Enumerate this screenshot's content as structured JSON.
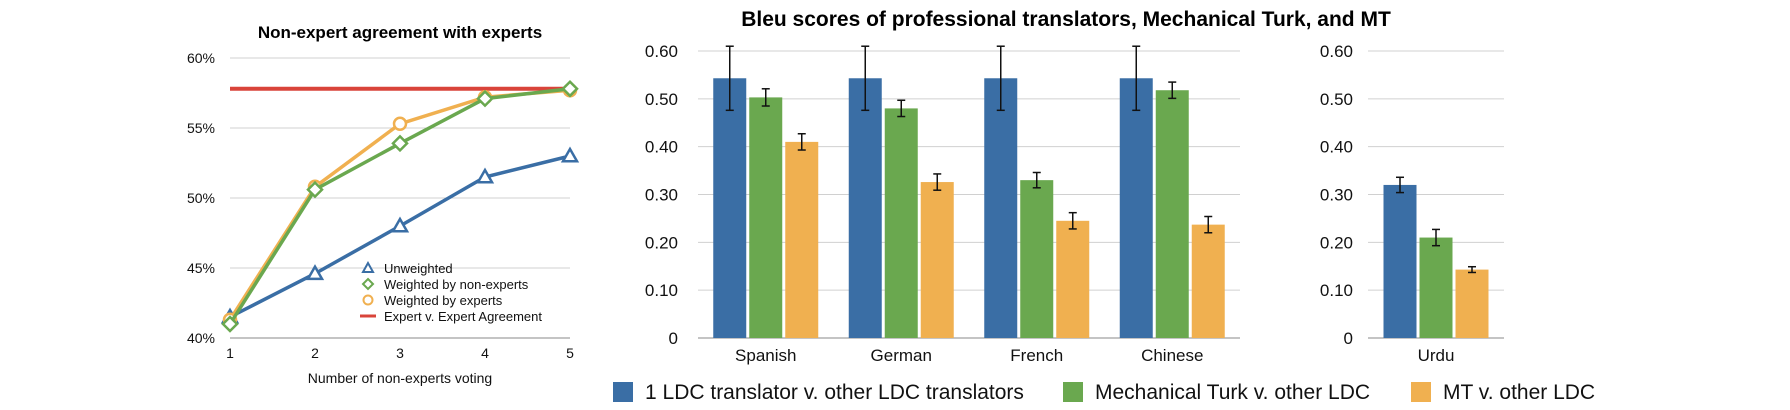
{
  "colors": {
    "blue": "#3a6ea5",
    "green": "#6aa84f",
    "orange": "#f0b050",
    "red": "#d9443a",
    "grid": "#d0d0d0",
    "axis": "#888888"
  },
  "chart_data": [
    {
      "type": "line",
      "title": "Non-expert agreement with experts",
      "xlabel": "Number of non-experts voting",
      "ylabel": "",
      "x": [
        1,
        2,
        3,
        4,
        5
      ],
      "xlim": [
        1,
        5
      ],
      "ylim": [
        40,
        60
      ],
      "x_tick_labels": [
        "1",
        "2",
        "3",
        "4",
        "5"
      ],
      "y_ticks": [
        40,
        45,
        50,
        55,
        60
      ],
      "y_tick_labels": [
        "40%",
        "45%",
        "50%",
        "55%",
        "60%"
      ],
      "grid": true,
      "legend_position": "bottom-right",
      "series": [
        {
          "name": "Unweighted",
          "marker": "triangle",
          "color_key": "blue",
          "values": [
            41.5,
            44.6,
            48.0,
            51.5,
            53.0
          ]
        },
        {
          "name": "Weighted by non-experts",
          "marker": "diamond",
          "color_key": "green",
          "values": [
            41.0,
            50.6,
            53.9,
            57.1,
            57.8
          ]
        },
        {
          "name": "Weighted by experts",
          "marker": "circle",
          "color_key": "orange",
          "values": [
            41.3,
            50.8,
            55.3,
            57.2,
            57.7
          ]
        },
        {
          "name": "Expert v. Expert Agreement",
          "marker": "none",
          "color_key": "red",
          "values": [
            57.8,
            57.8,
            57.8,
            57.8,
            57.8
          ]
        }
      ]
    },
    {
      "type": "bar",
      "title": "Bleu scores of professional translators, Mechanical Turk, and MT",
      "categories": [
        "Spanish",
        "German",
        "French",
        "Chinese"
      ],
      "ylim": [
        0,
        0.6
      ],
      "y_ticks": [
        0,
        0.1,
        0.2,
        0.3,
        0.4,
        0.5,
        0.6
      ],
      "y_tick_labels": [
        "0",
        "0.10",
        "0.20",
        "0.30",
        "0.40",
        "0.50",
        "0.60"
      ],
      "grid": true,
      "series": [
        {
          "name": "1 LDC translator v. other LDC translators",
          "color_key": "blue",
          "values": [
            0.543,
            0.543,
            0.543,
            0.543
          ],
          "errors": [
            0.067,
            0.067,
            0.067,
            0.067
          ]
        },
        {
          "name": "Mechanical Turk v. other LDC",
          "color_key": "green",
          "values": [
            0.503,
            0.48,
            0.33,
            0.518
          ],
          "errors": [
            0.018,
            0.017,
            0.016,
            0.017
          ]
        },
        {
          "name": "MT v. other LDC",
          "color_key": "orange",
          "values": [
            0.41,
            0.326,
            0.245,
            0.237
          ],
          "errors": [
            0.017,
            0.017,
            0.017,
            0.017
          ]
        }
      ]
    },
    {
      "type": "bar",
      "categories": [
        "Urdu"
      ],
      "ylim": [
        0,
        0.6
      ],
      "y_ticks": [
        0,
        0.1,
        0.2,
        0.3,
        0.4,
        0.5,
        0.6
      ],
      "y_tick_labels": [
        "0",
        "0.10",
        "0.20",
        "0.30",
        "0.40",
        "0.50",
        "0.60"
      ],
      "grid": true,
      "legend_position": "bottom",
      "series": [
        {
          "name": "1 LDC translator v. other LDC translators",
          "color_key": "blue",
          "values": [
            0.32
          ],
          "errors": [
            0.016
          ]
        },
        {
          "name": "Mechanical Turk v. other LDC",
          "color_key": "green",
          "values": [
            0.21
          ],
          "errors": [
            0.017
          ]
        },
        {
          "name": "MT v. other LDC",
          "color_key": "orange",
          "values": [
            0.143
          ],
          "errors": [
            0.006
          ]
        }
      ]
    }
  ]
}
